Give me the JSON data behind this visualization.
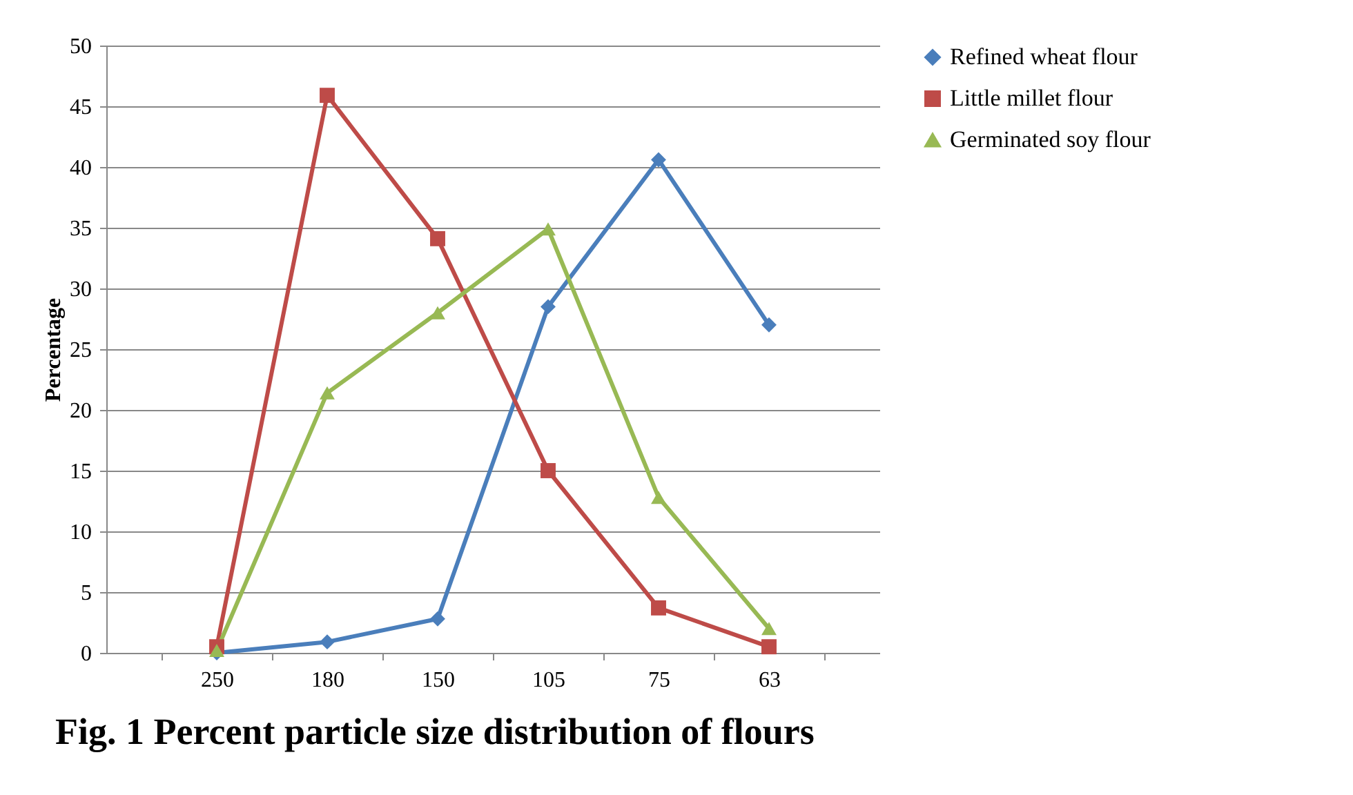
{
  "chart_data": {
    "type": "line",
    "title": "Fig. 1 Percent particle size distribution of flours",
    "ylabel": "Percentage",
    "categories": [
      "250",
      "180",
      "150",
      "105",
      "75",
      "63"
    ],
    "series": [
      {
        "name": "Refined wheat flour",
        "color": "#4a7ebb",
        "marker": "diamond",
        "values": [
          0,
          0.9,
          2.8,
          28.5,
          40.6,
          27.0
        ]
      },
      {
        "name": "Little millet flour",
        "color": "#be4b48",
        "marker": "square",
        "values": [
          0.5,
          45.9,
          34.1,
          15.0,
          3.7,
          0.5
        ]
      },
      {
        "name": "Germinated soy flour",
        "color": "#98b954",
        "marker": "triangle",
        "values": [
          0.2,
          21.4,
          28.0,
          34.9,
          12.8,
          2.0
        ]
      }
    ],
    "ylim": [
      0,
      50
    ],
    "yticks": [
      0,
      5,
      10,
      15,
      20,
      25,
      30,
      35,
      40,
      45,
      50
    ],
    "grid": "y",
    "legend": "right",
    "line_style": "solid"
  }
}
